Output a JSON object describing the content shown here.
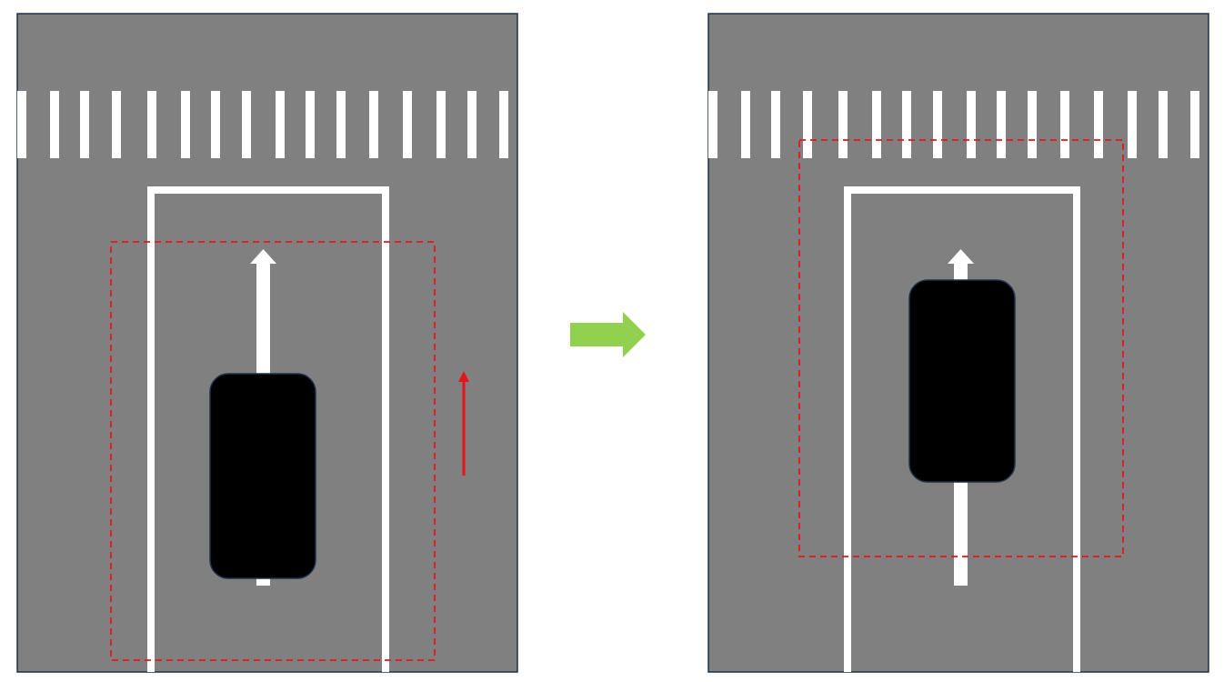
{
  "colors": {
    "road": "#808080",
    "border": "#203048",
    "marking": "#ffffff",
    "vehicle": "#000000",
    "detection_box": "#e8141c",
    "motion_arrow": "#e8141c",
    "transition_arrow": "#92d050"
  },
  "panels": [
    {
      "id": "before",
      "vehicle_position": "lower",
      "shows_motion_arrow": true,
      "motion_direction": "up"
    },
    {
      "id": "after",
      "vehicle_position": "upper",
      "shows_motion_arrow": false
    }
  ],
  "transition": {
    "direction": "right",
    "icon": "arrow-right-icon"
  }
}
